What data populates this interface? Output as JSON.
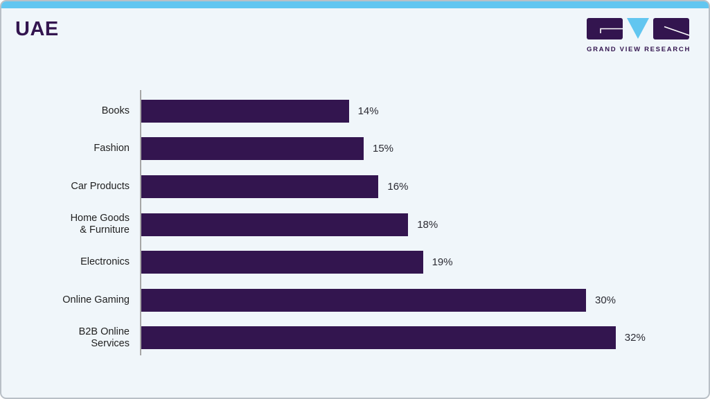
{
  "header": {
    "title": "UAE",
    "logo_text": "GRAND VIEW RESEARCH"
  },
  "colors": {
    "accent_blue": "#62c6f0",
    "brand_purple": "#33154f",
    "card_background": "#f0f6fa",
    "card_border": "#b9c0c7",
    "axis_gray": "#a6a6a6",
    "label_text": "#1f1f1f",
    "value_text": "#2b2b33"
  },
  "icons": {
    "logo_icon": "gvr-logo-icon"
  },
  "chart_data": {
    "type": "bar",
    "orientation": "horizontal",
    "title": "UAE",
    "xlabel": "",
    "ylabel": "",
    "categories": [
      "Books",
      "Fashion",
      "Car Products",
      "Home Goods\n& Furniture",
      "Electronics",
      "Online Gaming",
      "B2B Online\nServices"
    ],
    "values": [
      14,
      15,
      16,
      18,
      19,
      30,
      32
    ],
    "unit": "%",
    "value_labels": [
      "14%",
      "15%",
      "16%",
      "18%",
      "19%",
      "30%",
      "32%"
    ],
    "xlim": [
      0,
      33
    ],
    "grid": false,
    "legend": false,
    "bar_color": "#33154f"
  }
}
